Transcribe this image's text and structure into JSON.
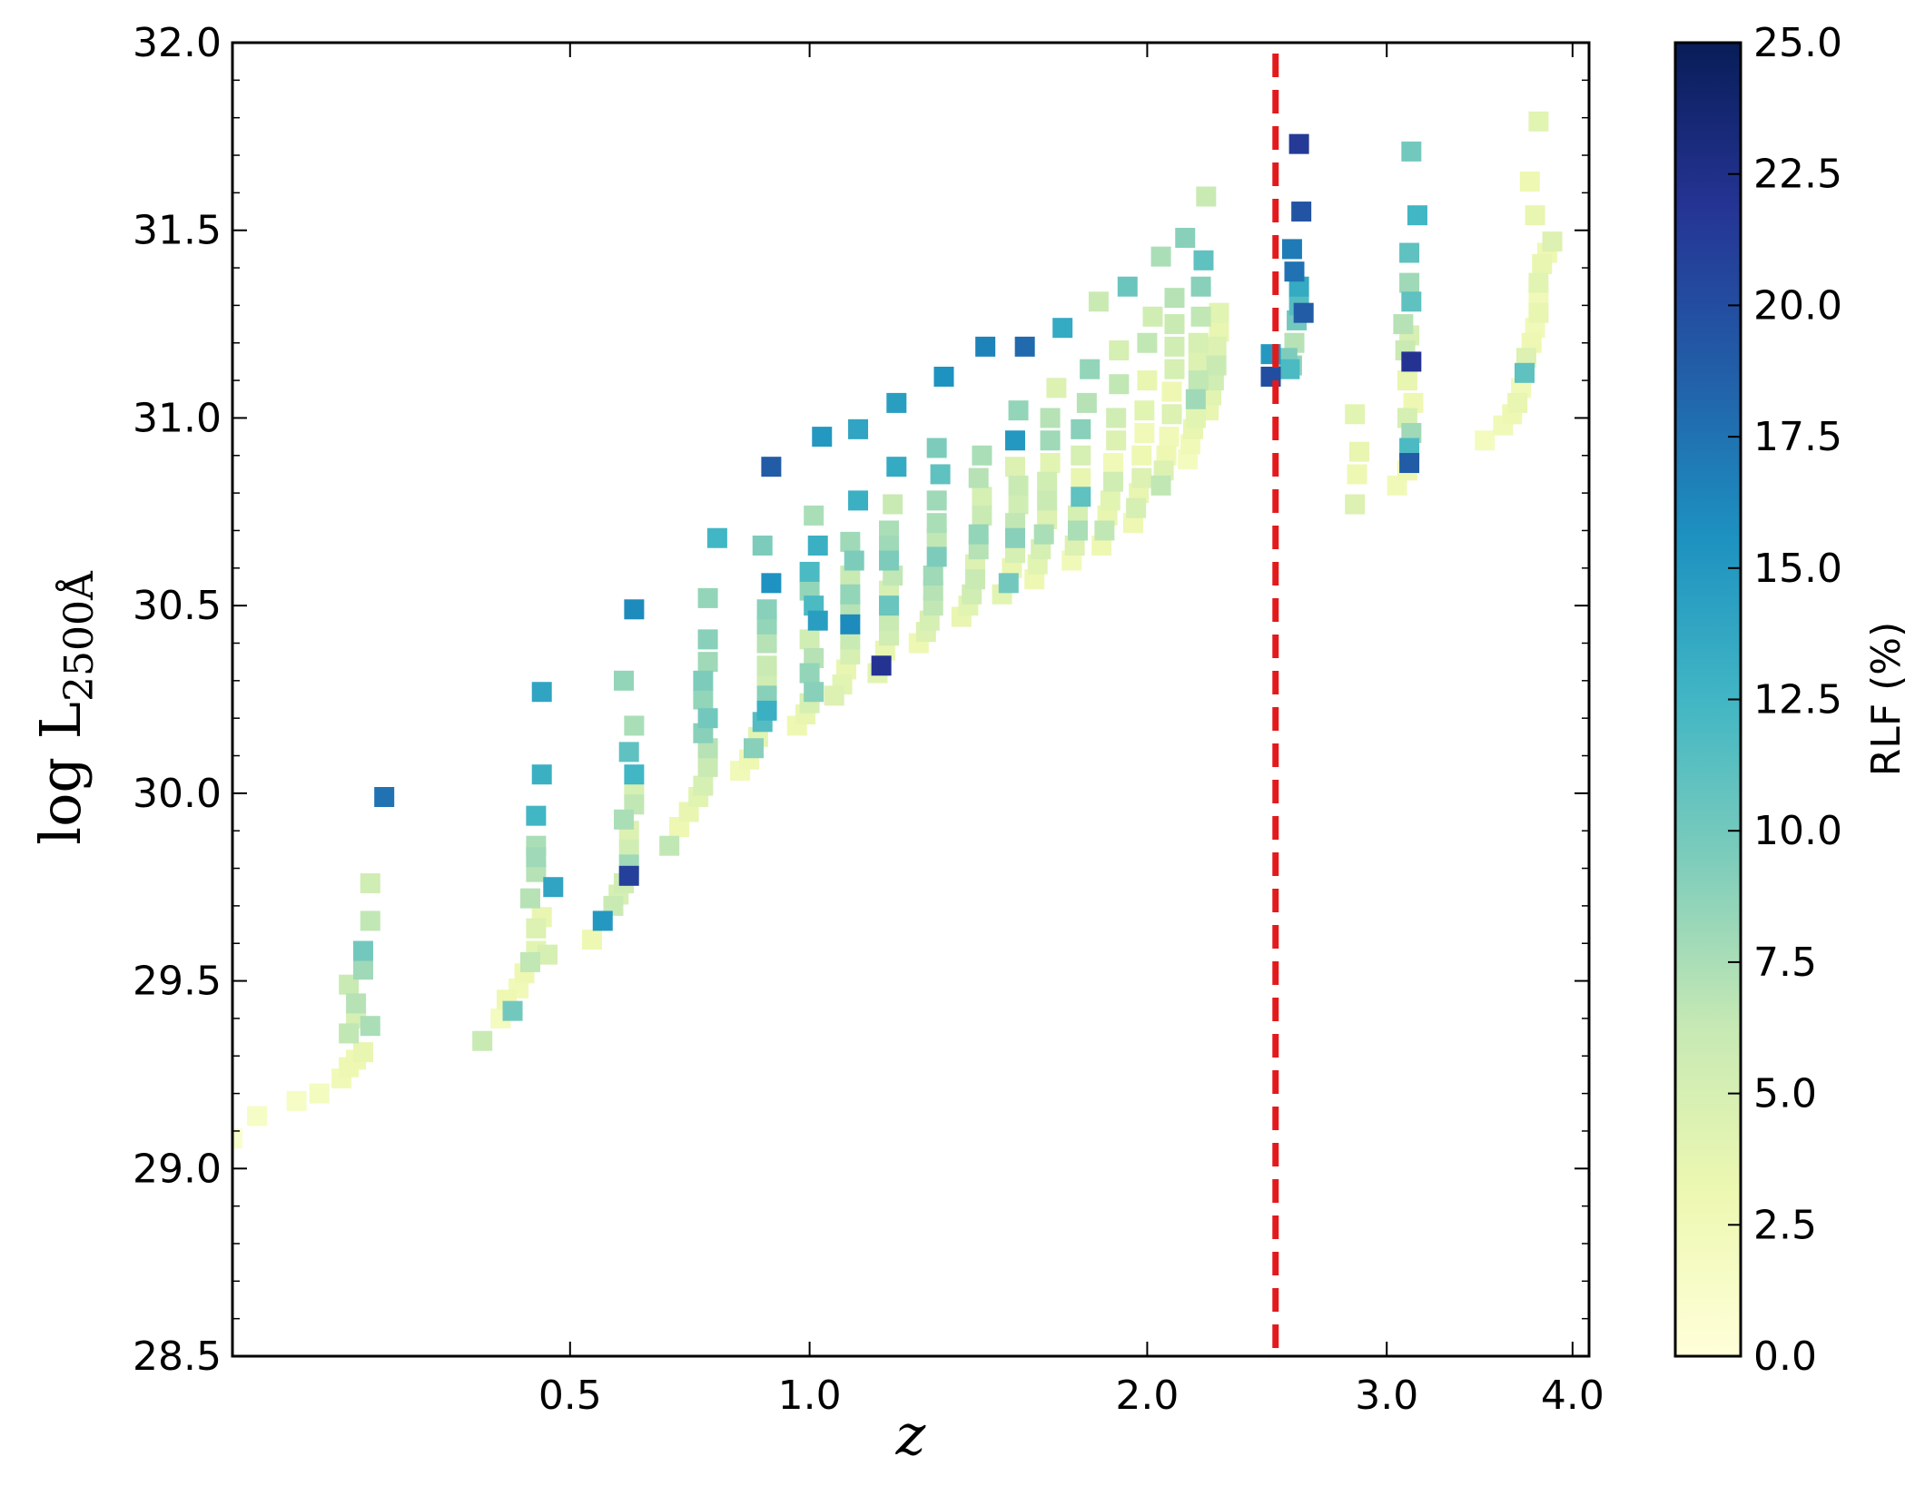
{
  "chart_data": {
    "type": "scatter",
    "title": "",
    "xlabel": "z",
    "ylabel": {
      "main": "log L",
      "subscript": "2500Å"
    },
    "xscale": "log(1+z)",
    "xlim": [
      0.0,
      4.1
    ],
    "ylim": [
      28.5,
      32.0
    ],
    "x_ticks": [
      "0.5",
      "1.0",
      "2.0",
      "3.0",
      "4.0"
    ],
    "x_tick_values": [
      0.5,
      1.0,
      2.0,
      3.0,
      4.0
    ],
    "y_ticks": [
      "28.5",
      "29.0",
      "29.5",
      "30.0",
      "30.5",
      "31.0",
      "31.5",
      "32.0"
    ],
    "y_tick_values": [
      28.5,
      29.0,
      29.5,
      30.0,
      30.5,
      31.0,
      31.5,
      32.0
    ],
    "vline": {
      "x": 2.5,
      "color": "#e31a1c",
      "style": "dashed"
    },
    "marker": "square",
    "grid": false,
    "colorbar": {
      "label": "RLF (%)",
      "range": [
        0,
        25
      ],
      "ticks": [
        "0.0",
        "2.5",
        "5.0",
        "7.5",
        "10.0",
        "12.5",
        "15.0",
        "17.5",
        "20.0",
        "22.5",
        "25.0"
      ],
      "tick_values": [
        0,
        2.5,
        5,
        7.5,
        10,
        12.5,
        15,
        17.5,
        20,
        22.5,
        25
      ],
      "colormap": "YlGnBu",
      "stops": [
        "#ffffd9",
        "#edf8b1",
        "#c7e9b4",
        "#7fcdbb",
        "#41b6c4",
        "#1d91c0",
        "#225ea8",
        "#253494",
        "#081d58"
      ]
    },
    "points": [
      [
        0.0,
        29.08,
        1.0
      ],
      [
        0.03,
        29.14,
        1.5
      ],
      [
        0.08,
        29.18,
        1.5
      ],
      [
        0.11,
        29.2,
        2.0
      ],
      [
        0.14,
        29.24,
        2.5
      ],
      [
        0.15,
        29.27,
        3.0
      ],
      [
        0.16,
        29.29,
        3.0
      ],
      [
        0.17,
        29.31,
        3.5
      ],
      [
        0.15,
        29.36,
        6.5
      ],
      [
        0.16,
        29.4,
        5.0
      ],
      [
        0.16,
        29.44,
        7.0
      ],
      [
        0.15,
        29.49,
        6.0
      ],
      [
        0.17,
        29.53,
        8.0
      ],
      [
        0.17,
        29.58,
        10.0
      ],
      [
        0.18,
        29.38,
        7.5
      ],
      [
        0.18,
        29.66,
        6.5
      ],
      [
        0.18,
        29.76,
        5.5
      ],
      [
        0.2,
        29.99,
        17.5
      ],
      [
        0.35,
        29.34,
        6.0
      ],
      [
        0.38,
        29.4,
        2.0
      ],
      [
        0.39,
        29.45,
        3.0
      ],
      [
        0.4,
        29.42,
        10.0
      ],
      [
        0.41,
        29.48,
        2.5
      ],
      [
        0.42,
        29.52,
        3.0
      ],
      [
        0.43,
        29.55,
        6.5
      ],
      [
        0.44,
        29.58,
        4.0
      ],
      [
        0.44,
        29.64,
        4.5
      ],
      [
        0.45,
        29.67,
        3.5
      ],
      [
        0.43,
        29.72,
        7.0
      ],
      [
        0.44,
        29.79,
        7.0
      ],
      [
        0.44,
        29.83,
        8.0
      ],
      [
        0.44,
        29.86,
        7.5
      ],
      [
        0.44,
        29.94,
        12.5
      ],
      [
        0.45,
        30.05,
        13.0
      ],
      [
        0.45,
        30.27,
        14.0
      ],
      [
        0.47,
        29.75,
        14.0
      ],
      [
        0.46,
        29.57,
        5.0
      ],
      [
        0.54,
        29.61,
        3.0
      ],
      [
        0.56,
        29.66,
        15.0
      ],
      [
        0.58,
        29.7,
        6.0
      ],
      [
        0.59,
        29.73,
        5.0
      ],
      [
        0.6,
        29.76,
        5.5
      ],
      [
        0.61,
        29.78,
        21.0
      ],
      [
        0.61,
        29.81,
        8.0
      ],
      [
        0.61,
        29.85,
        5.5
      ],
      [
        0.61,
        29.9,
        4.5
      ],
      [
        0.6,
        29.93,
        7.5
      ],
      [
        0.62,
        29.97,
        6.5
      ],
      [
        0.62,
        30.0,
        5.0
      ],
      [
        0.62,
        30.05,
        12.5
      ],
      [
        0.61,
        30.11,
        11.0
      ],
      [
        0.62,
        30.18,
        7.5
      ],
      [
        0.6,
        30.3,
        8.5
      ],
      [
        0.62,
        30.49,
        16.0
      ],
      [
        0.69,
        29.86,
        6.5
      ],
      [
        0.71,
        29.91,
        3.0
      ],
      [
        0.73,
        29.95,
        3.5
      ],
      [
        0.75,
        29.99,
        4.0
      ],
      [
        0.76,
        30.02,
        5.0
      ],
      [
        0.77,
        30.07,
        6.0
      ],
      [
        0.77,
        30.12,
        7.0
      ],
      [
        0.76,
        30.16,
        9.0
      ],
      [
        0.77,
        30.2,
        10.0
      ],
      [
        0.76,
        30.25,
        8.5
      ],
      [
        0.76,
        30.3,
        9.5
      ],
      [
        0.77,
        30.35,
        8.0
      ],
      [
        0.77,
        30.41,
        9.0
      ],
      [
        0.77,
        30.52,
        8.5
      ],
      [
        0.79,
        30.68,
        12.5
      ],
      [
        0.84,
        30.06,
        2.5
      ],
      [
        0.86,
        30.09,
        3.0
      ],
      [
        0.87,
        30.12,
        9.0
      ],
      [
        0.88,
        30.15,
        4.0
      ],
      [
        0.89,
        30.19,
        11.5
      ],
      [
        0.9,
        30.22,
        13.0
      ],
      [
        0.9,
        30.26,
        9.0
      ],
      [
        0.9,
        30.3,
        5.5
      ],
      [
        0.9,
        30.34,
        6.0
      ],
      [
        0.9,
        30.4,
        7.0
      ],
      [
        0.9,
        30.45,
        8.5
      ],
      [
        0.9,
        30.49,
        9.0
      ],
      [
        0.91,
        30.56,
        15.5
      ],
      [
        0.89,
        30.66,
        9.5
      ],
      [
        0.91,
        30.87,
        19.0
      ],
      [
        0.97,
        30.18,
        3.0
      ],
      [
        0.99,
        30.21,
        3.5
      ],
      [
        1.0,
        30.24,
        5.0
      ],
      [
        1.01,
        30.27,
        9.0
      ],
      [
        1.0,
        30.32,
        8.5
      ],
      [
        1.01,
        30.36,
        7.0
      ],
      [
        1.0,
        30.41,
        5.5
      ],
      [
        1.02,
        30.46,
        14.5
      ],
      [
        1.01,
        30.5,
        12.0
      ],
      [
        1.0,
        30.54,
        8.5
      ],
      [
        1.0,
        30.59,
        12.0
      ],
      [
        1.02,
        30.66,
        13.0
      ],
      [
        1.01,
        30.74,
        7.5
      ],
      [
        1.03,
        30.95,
        15.0
      ],
      [
        1.06,
        30.26,
        4.5
      ],
      [
        1.08,
        30.29,
        4.0
      ],
      [
        1.09,
        30.33,
        3.5
      ],
      [
        1.1,
        30.37,
        5.0
      ],
      [
        1.1,
        30.41,
        6.0
      ],
      [
        1.1,
        30.45,
        16.0
      ],
      [
        1.1,
        30.49,
        7.0
      ],
      [
        1.1,
        30.53,
        8.5
      ],
      [
        1.1,
        30.58,
        6.0
      ],
      [
        1.11,
        30.62,
        9.5
      ],
      [
        1.1,
        30.67,
        8.0
      ],
      [
        1.12,
        30.78,
        13.0
      ],
      [
        1.12,
        30.97,
        14.0
      ],
      [
        1.17,
        30.32,
        4.0
      ],
      [
        1.18,
        30.34,
        22.0
      ],
      [
        1.19,
        30.38,
        3.5
      ],
      [
        1.2,
        30.42,
        5.5
      ],
      [
        1.2,
        30.46,
        6.0
      ],
      [
        1.2,
        30.5,
        10.5
      ],
      [
        1.2,
        30.54,
        5.0
      ],
      [
        1.21,
        30.58,
        6.5
      ],
      [
        1.2,
        30.62,
        9.5
      ],
      [
        1.2,
        30.66,
        8.0
      ],
      [
        1.2,
        30.7,
        7.5
      ],
      [
        1.21,
        30.77,
        6.0
      ],
      [
        1.22,
        30.87,
        13.5
      ],
      [
        1.22,
        31.04,
        14.5
      ],
      [
        1.28,
        30.4,
        3.0
      ],
      [
        1.3,
        30.43,
        4.5
      ],
      [
        1.31,
        30.46,
        5.0
      ],
      [
        1.32,
        30.5,
        6.5
      ],
      [
        1.32,
        30.54,
        7.0
      ],
      [
        1.32,
        30.58,
        8.0
      ],
      [
        1.33,
        30.63,
        9.5
      ],
      [
        1.33,
        30.68,
        6.5
      ],
      [
        1.33,
        30.72,
        7.5
      ],
      [
        1.33,
        30.78,
        8.0
      ],
      [
        1.34,
        30.85,
        11.0
      ],
      [
        1.33,
        30.92,
        9.5
      ],
      [
        1.35,
        31.11,
        15.5
      ],
      [
        1.4,
        30.47,
        3.5
      ],
      [
        1.42,
        30.5,
        4.0
      ],
      [
        1.43,
        30.53,
        5.5
      ],
      [
        1.44,
        30.57,
        6.0
      ],
      [
        1.44,
        30.61,
        4.5
      ],
      [
        1.45,
        30.65,
        7.0
      ],
      [
        1.45,
        30.69,
        8.5
      ],
      [
        1.46,
        30.74,
        6.0
      ],
      [
        1.46,
        30.79,
        5.0
      ],
      [
        1.45,
        30.84,
        7.0
      ],
      [
        1.46,
        30.9,
        7.5
      ],
      [
        1.47,
        31.19,
        16.5
      ],
      [
        1.52,
        30.53,
        4.0
      ],
      [
        1.54,
        30.56,
        10.0
      ],
      [
        1.55,
        30.6,
        3.5
      ],
      [
        1.56,
        30.64,
        5.0
      ],
      [
        1.56,
        30.68,
        9.0
      ],
      [
        1.56,
        30.72,
        6.5
      ],
      [
        1.57,
        30.77,
        5.5
      ],
      [
        1.57,
        30.82,
        6.0
      ],
      [
        1.56,
        30.87,
        4.5
      ],
      [
        1.56,
        30.94,
        15.0
      ],
      [
        1.57,
        31.02,
        8.5
      ],
      [
        1.59,
        31.19,
        18.0
      ],
      [
        1.62,
        30.57,
        3.0
      ],
      [
        1.63,
        30.61,
        4.0
      ],
      [
        1.64,
        30.65,
        5.0
      ],
      [
        1.65,
        30.69,
        7.5
      ],
      [
        1.66,
        30.73,
        4.5
      ],
      [
        1.66,
        30.78,
        6.0
      ],
      [
        1.66,
        30.83,
        5.5
      ],
      [
        1.67,
        30.88,
        4.0
      ],
      [
        1.67,
        30.94,
        8.0
      ],
      [
        1.67,
        31.0,
        7.0
      ],
      [
        1.69,
        31.08,
        4.5
      ],
      [
        1.71,
        31.24,
        13.5
      ],
      [
        1.74,
        30.62,
        2.5
      ],
      [
        1.75,
        30.66,
        4.5
      ],
      [
        1.76,
        30.7,
        7.5
      ],
      [
        1.76,
        30.74,
        5.0
      ],
      [
        1.77,
        30.79,
        11.0
      ],
      [
        1.77,
        30.84,
        3.5
      ],
      [
        1.77,
        30.9,
        5.0
      ],
      [
        1.77,
        30.97,
        9.0
      ],
      [
        1.79,
        31.04,
        7.0
      ],
      [
        1.8,
        31.13,
        8.5
      ],
      [
        1.83,
        31.31,
        6.0
      ],
      [
        1.84,
        30.66,
        3.0
      ],
      [
        1.85,
        30.7,
        6.5
      ],
      [
        1.86,
        30.74,
        3.5
      ],
      [
        1.87,
        30.78,
        4.0
      ],
      [
        1.88,
        30.83,
        5.5
      ],
      [
        1.88,
        30.88,
        2.5
      ],
      [
        1.89,
        30.94,
        4.5
      ],
      [
        1.89,
        31.0,
        5.5
      ],
      [
        1.9,
        31.09,
        6.5
      ],
      [
        1.9,
        31.18,
        5.0
      ],
      [
        1.93,
        31.35,
        10.5
      ],
      [
        1.95,
        30.72,
        3.0
      ],
      [
        1.96,
        30.76,
        5.0
      ],
      [
        1.97,
        30.8,
        3.5
      ],
      [
        1.98,
        30.84,
        4.5
      ],
      [
        1.98,
        30.9,
        3.0
      ],
      [
        1.99,
        30.96,
        2.5
      ],
      [
        1.99,
        31.02,
        4.0
      ],
      [
        2.0,
        31.1,
        3.5
      ],
      [
        2.0,
        31.2,
        6.5
      ],
      [
        2.02,
        31.27,
        5.5
      ],
      [
        2.05,
        31.43,
        7.5
      ],
      [
        2.05,
        30.82,
        6.5
      ],
      [
        2.06,
        30.86,
        4.5
      ],
      [
        2.07,
        30.9,
        3.0
      ],
      [
        2.08,
        30.95,
        2.5
      ],
      [
        2.09,
        31.01,
        4.5
      ],
      [
        2.09,
        31.07,
        3.0
      ],
      [
        2.1,
        31.13,
        5.0
      ],
      [
        2.1,
        31.19,
        5.5
      ],
      [
        2.1,
        31.25,
        6.0
      ],
      [
        2.1,
        31.32,
        7.0
      ],
      [
        2.14,
        31.48,
        9.0
      ],
      [
        2.15,
        30.89,
        2.0
      ],
      [
        2.16,
        30.93,
        2.5
      ],
      [
        2.17,
        30.97,
        3.5
      ],
      [
        2.18,
        31.0,
        4.0
      ],
      [
        2.18,
        31.05,
        8.0
      ],
      [
        2.19,
        31.1,
        6.5
      ],
      [
        2.19,
        31.15,
        4.5
      ],
      [
        2.19,
        31.2,
        5.0
      ],
      [
        2.2,
        31.27,
        6.5
      ],
      [
        2.2,
        31.35,
        9.0
      ],
      [
        2.21,
        31.42,
        11.0
      ],
      [
        2.22,
        31.59,
        6.0
      ],
      [
        2.23,
        31.02,
        3.5
      ],
      [
        2.24,
        31.06,
        4.0
      ],
      [
        2.25,
        31.1,
        5.5
      ],
      [
        2.26,
        31.14,
        6.0
      ],
      [
        2.26,
        31.19,
        4.5
      ],
      [
        2.27,
        31.23,
        3.5
      ],
      [
        2.27,
        31.28,
        4.0
      ],
      [
        2.48,
        31.11,
        20.0
      ],
      [
        2.48,
        31.17,
        15.0
      ],
      [
        2.57,
        31.14,
        8.5
      ],
      [
        2.58,
        31.2,
        7.0
      ],
      [
        2.59,
        31.26,
        10.0
      ],
      [
        2.6,
        31.3,
        11.5
      ],
      [
        2.6,
        31.35,
        13.5
      ],
      [
        2.58,
        31.39,
        17.5
      ],
      [
        2.57,
        31.45,
        17.0
      ],
      [
        2.62,
        31.28,
        19.0
      ],
      [
        2.61,
        31.55,
        19.5
      ],
      [
        2.6,
        31.73,
        21.5
      ],
      [
        2.56,
        31.13,
        12.0
      ],
      [
        2.55,
        31.16,
        9.5
      ],
      [
        2.85,
        30.77,
        4.5
      ],
      [
        2.86,
        30.85,
        3.0
      ],
      [
        2.87,
        30.91,
        3.5
      ],
      [
        2.85,
        31.01,
        4.0
      ],
      [
        3.05,
        30.82,
        2.5
      ],
      [
        3.1,
        30.86,
        3.0
      ],
      [
        3.11,
        30.88,
        19.0
      ],
      [
        3.11,
        30.92,
        12.0
      ],
      [
        3.12,
        30.96,
        8.0
      ],
      [
        3.1,
        31.0,
        5.0
      ],
      [
        3.13,
        31.04,
        3.0
      ],
      [
        3.1,
        31.1,
        3.5
      ],
      [
        3.12,
        31.15,
        22.0
      ],
      [
        3.09,
        31.18,
        6.0
      ],
      [
        3.11,
        31.22,
        5.0
      ],
      [
        3.08,
        31.25,
        7.0
      ],
      [
        3.12,
        31.31,
        11.0
      ],
      [
        3.11,
        31.36,
        8.0
      ],
      [
        3.11,
        31.44,
        11.0
      ],
      [
        3.15,
        31.54,
        12.5
      ],
      [
        3.12,
        31.71,
        10.0
      ],
      [
        3.5,
        30.94,
        2.0
      ],
      [
        3.6,
        30.98,
        2.5
      ],
      [
        3.65,
        31.01,
        3.0
      ],
      [
        3.68,
        31.04,
        3.5
      ],
      [
        3.7,
        31.08,
        2.5
      ],
      [
        3.72,
        31.12,
        11.0
      ],
      [
        3.73,
        31.16,
        4.5
      ],
      [
        3.76,
        31.2,
        3.0
      ],
      [
        3.78,
        31.24,
        2.5
      ],
      [
        3.8,
        31.28,
        3.5
      ],
      [
        3.8,
        31.32,
        2.5
      ],
      [
        3.8,
        31.36,
        4.0
      ],
      [
        3.82,
        31.41,
        3.5
      ],
      [
        3.85,
        31.44,
        3.0
      ],
      [
        3.88,
        31.47,
        4.5
      ],
      [
        3.78,
        31.54,
        3.5
      ],
      [
        3.75,
        31.63,
        3.0
      ],
      [
        3.8,
        31.79,
        4.0
      ]
    ]
  }
}
